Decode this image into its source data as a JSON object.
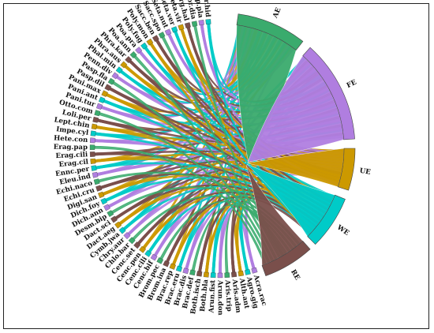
{
  "groups": [
    {
      "label": "AE",
      "color": "#3aab6d"
    },
    {
      "label": "FE",
      "color": "#b07ee0"
    },
    {
      "label": "UE",
      "color": "#cc9900"
    },
    {
      "label": "WE",
      "color": "#00cbc8"
    },
    {
      "label": "RE",
      "color": "#7a4f4b"
    }
  ],
  "species": [
    "Acra.rac",
    "Agro.gig",
    "Alth.ant",
    "Aris.adm",
    "Aris.trip",
    "Arun.don",
    "Arun.fist",
    "Both.bla",
    "Both.isch",
    "Brac.def",
    "Brac.dis",
    "Brac.eru",
    "Brac.rep",
    "Brom.ina",
    "Brom.pec",
    "Cenc.bif",
    "Cenc.cili",
    "Cenc.pen",
    "Cenc.set",
    "Chlo.bar",
    "Chry.aur",
    "Cymb.jwa",
    "Dact.aeg",
    "Dact.sci",
    "Desm.bip",
    "Dich.ann",
    "Dich.foy",
    "Digi.san",
    "Echi.cru",
    "Echi.naco",
    "Eleu.ind",
    "Ennc.per",
    "Erag.cil",
    "Erag.cili",
    "Erag.pap",
    "Hete.con",
    "Impe.cyl",
    "Lept.chin",
    "Loli.per",
    "Otto.com",
    "Pani.tur",
    "Pani.ant",
    "Pani.max",
    "Pasp.dil",
    "Pasp.fla",
    "Penn.div",
    "Phal.min",
    "Phra.aus",
    "Phra.kar",
    "Poa.ann",
    "Poa.pra",
    "Poly.fug",
    "Poly.mon",
    "Sacc.ben",
    "Sacc.spo",
    "Seta.nut",
    "Seta.ver",
    "Seta.vir",
    "Sorg.hal",
    "Spor.dia",
    "Stip.pla",
    "Tetr.hid"
  ],
  "species_colors": [
    "#b07ee0",
    "#00cbc8",
    "#cc9900",
    "#7a4f4b",
    "#3aab6d"
  ]
}
